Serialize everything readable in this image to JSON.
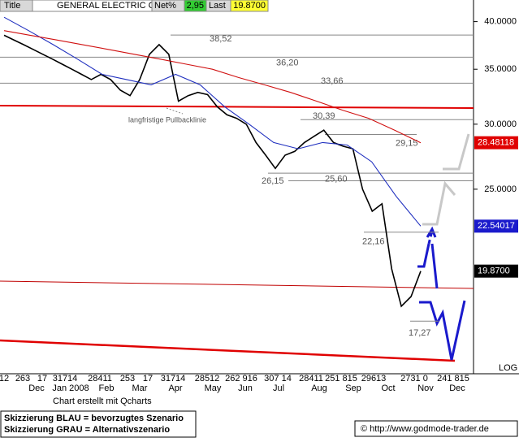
{
  "chart_data": {
    "type": "line",
    "log_scale": true,
    "title": "GENERAL ELECTRIC CO",
    "header": {
      "tab": "Title",
      "net_label": "Net%",
      "net_value": "2,95",
      "last_label": "Last",
      "last_value": "19.8700"
    },
    "ylim": [
      14.9,
      42.5
    ],
    "yticks": [
      {
        "value": 40,
        "label": "40.0000"
      },
      {
        "value": 35,
        "label": "35.0000"
      },
      {
        "value": 30,
        "label": "30.0000"
      },
      {
        "value": 25,
        "label": "25.0000"
      }
    ],
    "scale_label": "LOG",
    "x_labels_top": [
      "12",
      "263",
      "17",
      "31714",
      "28411",
      "253",
      "17",
      "31714",
      "28512",
      "262 916",
      "307 14",
      "28411",
      "251 815",
      "29613",
      "2731 0",
      "241 815"
    ],
    "x_labels_bottom": [
      "Dec",
      "Jan 2008",
      "Feb",
      "Mar",
      "Apr",
      "May",
      "Jun",
      "Jul",
      "Aug",
      "Sep",
      "Oct",
      "Nov",
      "Dec"
    ],
    "series": [
      {
        "color": "#000000",
        "values": [
          38.5,
          38.0,
          37.5,
          37.0,
          36.5,
          36.0,
          35.5,
          35.0,
          34.5,
          34.0,
          34.5,
          34.0,
          33.0,
          32.5,
          34.0,
          36.5,
          37.5,
          36.5,
          32.0,
          32.5,
          32.8,
          32.6,
          31.5,
          30.8,
          30.5,
          30.0,
          28.5,
          27.5,
          26.5,
          27.5,
          27.8,
          28.5,
          29.0,
          29.5,
          28.5,
          28.2,
          28.0,
          25.0,
          23.5,
          24.0,
          20.0,
          18.0,
          18.5,
          19.87
        ]
      },
      {
        "color": "#1f2fbf",
        "values": [
          40.5,
          39.0,
          37.5,
          36.0,
          34.5,
          34.0,
          33.5,
          34.5,
          33.5,
          31.5,
          30.0,
          28.5,
          28.0,
          28.5,
          28.3,
          27.0,
          24.5,
          22.54
        ]
      },
      {
        "color": "#d01010",
        "values": [
          39.0,
          38.5,
          38.0,
          37.5,
          37.0,
          36.5,
          36.0,
          35.5,
          35.0,
          34.2,
          33.5,
          32.8,
          32.0,
          31.2,
          30.5,
          29.5,
          28.48
        ]
      }
    ],
    "last_badges": [
      {
        "value": 28.48118,
        "label": "28.48118",
        "color": "#e00000"
      },
      {
        "value": 22.54017,
        "label": "22.54017",
        "color": "#1a1acc"
      },
      {
        "value": 19.87,
        "label": "19.8700",
        "color": "#000000"
      }
    ],
    "levels": [
      {
        "value": 38.52,
        "label": "38,52"
      },
      {
        "value": 36.2,
        "label": "36,20"
      },
      {
        "value": 33.66,
        "label": "33,66"
      },
      {
        "value": 30.39,
        "label": "30,39"
      },
      {
        "value": 29.15,
        "label": "29,15"
      },
      {
        "value": 26.15,
        "label": "26,15"
      },
      {
        "value": 25.6,
        "label": "25,60"
      },
      {
        "value": 22.16,
        "label": "22,16"
      },
      {
        "value": 17.27,
        "label": "17,27"
      }
    ],
    "trend_label": "langfristige Pullbacklinie",
    "credit": "Chart erstellt mit Qcharts",
    "legend_lines": [
      "Skizzierung BLAU = bevorzugtes Szenario",
      "Skizzierung GRAU = Alternativszenario"
    ],
    "source": "© http://www.godmode-trader.de"
  }
}
